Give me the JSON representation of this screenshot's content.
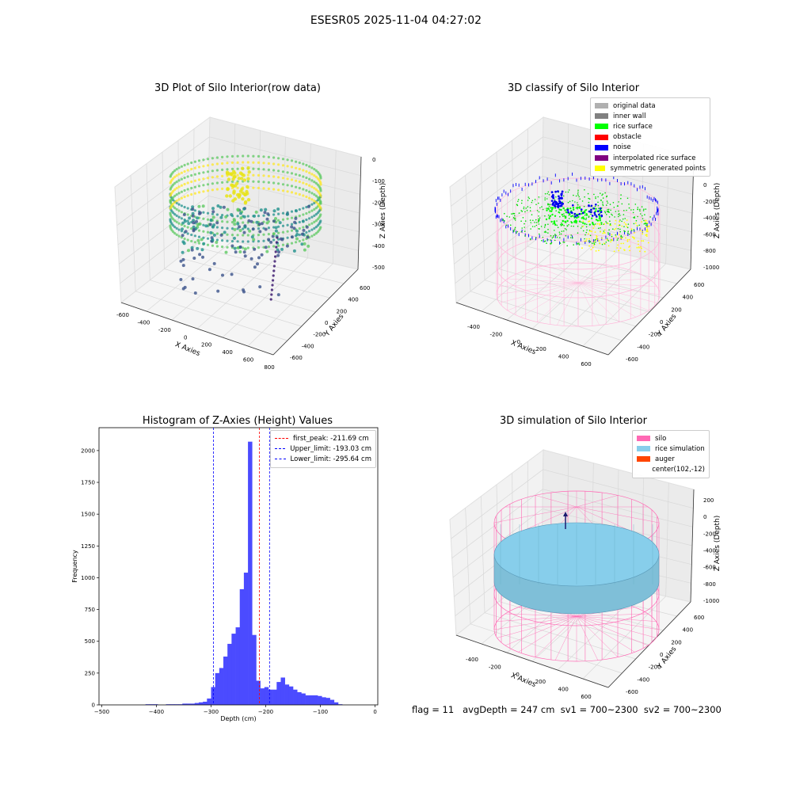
{
  "suptitle": "ESESR05 2025-11-04 04:27:02",
  "footer": {
    "text": "flag = 11   avgDepth = 247 cm  sv1 = 700~2300  sv2 = 700~2300"
  },
  "colors": {
    "hist_bar": "#4b4bff",
    "peak_line": "#ff0000",
    "limit_line": "#0000ff",
    "silo": "#ff69b4",
    "rice": "#87ceeb"
  },
  "chart_data": [
    {
      "id": "raw",
      "type": "scatter",
      "title": "3D Plot of Silo Interior(row data)",
      "xlabel": "X Axies",
      "ylabel": "Y Axies",
      "zlabel": "Z Axies (Depth)",
      "x_ticks": [
        "-600",
        "-400",
        "-200",
        "0",
        "200",
        "400",
        "600",
        "800"
      ],
      "y_ticks": [
        "-600",
        "-400",
        "-200",
        "0",
        "200",
        "400",
        "600"
      ],
      "z_ticks": [
        "0",
        "-100",
        "-200",
        "-300",
        "-400",
        "-500"
      ],
      "colormap": "viridis"
    },
    {
      "id": "classify",
      "type": "scatter",
      "title": "3D classify of Silo Interior",
      "xlabel": "X Axies",
      "ylabel": "Y Axies",
      "zlabel": "Z Axies (Depth)",
      "x_ticks": [
        "-400",
        "-200",
        "0",
        "200",
        "400",
        "600"
      ],
      "y_ticks": [
        "-600",
        "-400",
        "-200",
        "0",
        "200",
        "400",
        "600"
      ],
      "z_ticks": [
        "0",
        "-200",
        "-400",
        "-600",
        "-800",
        "-1000"
      ],
      "legend": [
        {
          "label": "original data",
          "color": "#b0b0b0"
        },
        {
          "label": "inner wall",
          "color": "#808080"
        },
        {
          "label": "rice surface",
          "color": "#00ff00"
        },
        {
          "label": "obstacle",
          "color": "#ff0000"
        },
        {
          "label": "noise",
          "color": "#0000ff"
        },
        {
          "label": "interpolated rice surface",
          "color": "#800080"
        },
        {
          "label": "symmetric generated points",
          "color": "#ffff00"
        }
      ]
    },
    {
      "id": "hist",
      "type": "bar",
      "title": "Histogram of Z-Axies (Height) Values",
      "xlabel": "Depth (cm)",
      "ylabel": "Frequency",
      "xlim": [
        -505,
        5
      ],
      "ylim": [
        0,
        2180
      ],
      "x_ticks": [
        -500,
        -400,
        -300,
        -200,
        -100,
        0
      ],
      "y_ticks": [
        0,
        250,
        500,
        750,
        1000,
        1250,
        1500,
        1750,
        2000
      ],
      "bin_width": 7.5,
      "bins": [
        {
          "x0": -420,
          "v": 5
        },
        {
          "x0": -412.5,
          "v": 5
        },
        {
          "x0": -405,
          "v": 5
        },
        {
          "x0": -382.5,
          "v": 5
        },
        {
          "x0": -375,
          "v": 5
        },
        {
          "x0": -367.5,
          "v": 5
        },
        {
          "x0": -360,
          "v": 5
        },
        {
          "x0": -352.5,
          "v": 10
        },
        {
          "x0": -345,
          "v": 10
        },
        {
          "x0": -337.5,
          "v": 10
        },
        {
          "x0": -330,
          "v": 15
        },
        {
          "x0": -322.5,
          "v": 20
        },
        {
          "x0": -315,
          "v": 25
        },
        {
          "x0": -307.5,
          "v": 50
        },
        {
          "x0": -300,
          "v": 140
        },
        {
          "x0": -292.5,
          "v": 250
        },
        {
          "x0": -285,
          "v": 290
        },
        {
          "x0": -277.5,
          "v": 380
        },
        {
          "x0": -270,
          "v": 480
        },
        {
          "x0": -262.5,
          "v": 560
        },
        {
          "x0": -255,
          "v": 610
        },
        {
          "x0": -247.5,
          "v": 910
        },
        {
          "x0": -240,
          "v": 1040
        },
        {
          "x0": -232.5,
          "v": 2070
        },
        {
          "x0": -225,
          "v": 550
        },
        {
          "x0": -217.5,
          "v": 190
        },
        {
          "x0": -210,
          "v": 130
        },
        {
          "x0": -202.5,
          "v": 140
        },
        {
          "x0": -195,
          "v": 120
        },
        {
          "x0": -187.5,
          "v": 120
        },
        {
          "x0": -180,
          "v": 180
        },
        {
          "x0": -172.5,
          "v": 215
        },
        {
          "x0": -165,
          "v": 160
        },
        {
          "x0": -157.5,
          "v": 145
        },
        {
          "x0": -150,
          "v": 120
        },
        {
          "x0": -142.5,
          "v": 100
        },
        {
          "x0": -135,
          "v": 90
        },
        {
          "x0": -127.5,
          "v": 75
        },
        {
          "x0": -120,
          "v": 75
        },
        {
          "x0": -112.5,
          "v": 75
        },
        {
          "x0": -105,
          "v": 70
        },
        {
          "x0": -97.5,
          "v": 60
        },
        {
          "x0": -90,
          "v": 55
        },
        {
          "x0": -82.5,
          "v": 40
        },
        {
          "x0": -75,
          "v": 20
        },
        {
          "x0": -67.5,
          "v": 5
        }
      ],
      "vlines": [
        {
          "label": "first_peak: -211.69 cm",
          "value": -211.69,
          "color": "#ff0000"
        },
        {
          "label": "Upper_limit: -193.03 cm",
          "value": -193.03,
          "color": "#0000ff"
        },
        {
          "label": "Lower_limit: -295.64 cm",
          "value": -295.64,
          "color": "#0000ff"
        }
      ]
    },
    {
      "id": "sim",
      "type": "scatter",
      "title": "3D simulation of Silo Interior",
      "xlabel": "X Axies",
      "ylabel": "Y Axies",
      "zlabel": "Z Axies (Depth)",
      "x_ticks": [
        "-400",
        "-200",
        "0",
        "200",
        "400",
        "600"
      ],
      "y_ticks": [
        "-600",
        "-400",
        "-200",
        "0",
        "200",
        "400",
        "600"
      ],
      "z_ticks": [
        "200",
        "0",
        "-200",
        "-400",
        "-600",
        "-800",
        "-1000"
      ],
      "legend": [
        {
          "label": "silo",
          "color": "#ff69b4"
        },
        {
          "label": "rice simulation",
          "color": "#87ceeb"
        },
        {
          "label": "auger",
          "color": "#ff4500"
        },
        {
          "label": "center(102,-12)",
          "color": ""
        }
      ]
    }
  ]
}
